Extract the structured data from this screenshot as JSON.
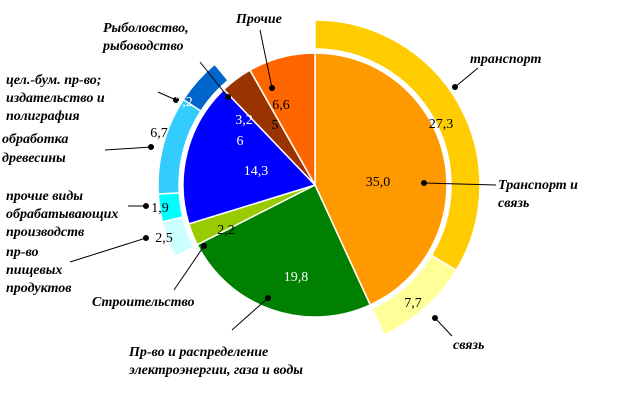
{
  "chart_data": {
    "type": "pie",
    "title": "",
    "slices": [
      {
        "label": "Транспорт и связь",
        "value": 35.0,
        "display": "35,0",
        "color": "#FF9900"
      },
      {
        "label": "Пр-во и распределение электроэнергии, газа и воды",
        "value": 19.8,
        "display": "19,8",
        "color": "#008000"
      },
      {
        "label": "Строительство",
        "value": 2.2,
        "display": "2,2",
        "color": "#99CC00"
      },
      {
        "label": "",
        "value": 14.3,
        "display": "14,3",
        "color": "#0000FF"
      },
      {
        "label": "Рыболовство, рыбоводство",
        "value": 3.2,
        "display": "3,2",
        "color": "#993300"
      },
      {
        "label": "Прочие",
        "value": 6.65,
        "display": "6,6",
        "display2": "5",
        "color": "#FF6600"
      }
    ],
    "outer_ring": [
      {
        "label": "транспорт",
        "value": 27.3,
        "display": "27,3",
        "color": "#FFCC00"
      },
      {
        "label": "связь",
        "value": 7.7,
        "display": "7,7",
        "color": "#FFFF99"
      },
      {
        "label": "пр-во пищевых продуктов",
        "value": 2.5,
        "display": "2,5",
        "color": "#CCFFFF"
      },
      {
        "label": "прочие виды обрабатывающих производств",
        "value": 1.9,
        "display": "1,9",
        "color": "#00FFFF"
      },
      {
        "label": "обработка древесины",
        "value": 6.7,
        "display": "6,7",
        "color": "#33CCFF"
      },
      {
        "label": "цел.-бум. пр-во; издательство и полиграфия",
        "value": 3.2,
        "display": "3,2",
        "color": "#0066CC"
      }
    ],
    "inner_annotation": "6",
    "legend": "none"
  },
  "labels": {
    "transport_and_communication": [
      "Транспорт и",
      "связь"
    ],
    "electricity": [
      "Пр-во и распределение",
      "электроэнергии, газа и воды"
    ],
    "construction": "Строительство",
    "fishing": [
      "Рыболовство,",
      "рыбоводство"
    ],
    "other": "Прочие",
    "transport": "транспорт",
    "communication": "связь",
    "food": [
      "пр-во",
      "пищевых",
      "продуктов"
    ],
    "other_manufacturing": [
      "прочие виды",
      "обрабатывающих",
      "производств"
    ],
    "wood": [
      "обработка",
      "древесины"
    ],
    "paper": [
      "цел.-бум. пр-во;",
      "издательство и",
      "полиграфия"
    ]
  }
}
